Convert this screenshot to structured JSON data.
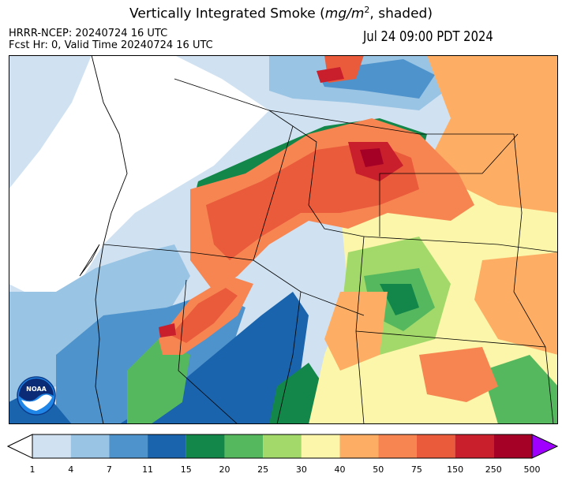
{
  "title": {
    "main": "Vertically Integrated Smoke (",
    "unit": "mg/m",
    "sup": "2",
    "suffix": ", shaded)"
  },
  "info": {
    "line1": "HRRR-NCEP: 20240724 16 UTC",
    "line2": "Fcst Hr: 0, Valid Time 20240724 16 UTC"
  },
  "valid_time": "Jul 24 09:00 PDT 2024",
  "logo_text": "NOAA",
  "colorbar": {
    "ticks": [
      "1",
      "4",
      "7",
      "11",
      "15",
      "20",
      "25",
      "30",
      "40",
      "50",
      "75",
      "150",
      "250",
      "500"
    ],
    "colors": [
      "#ffffff",
      "#d0e2f2",
      "#9ac4e3",
      "#4f93cc",
      "#1a64ae",
      "#13864a",
      "#56b85e",
      "#a3d96a",
      "#fbf6a9",
      "#fdae64",
      "#f78552",
      "#ea5b3c",
      "#c91f2d",
      "#a50026",
      "#a000ff"
    ]
  }
}
